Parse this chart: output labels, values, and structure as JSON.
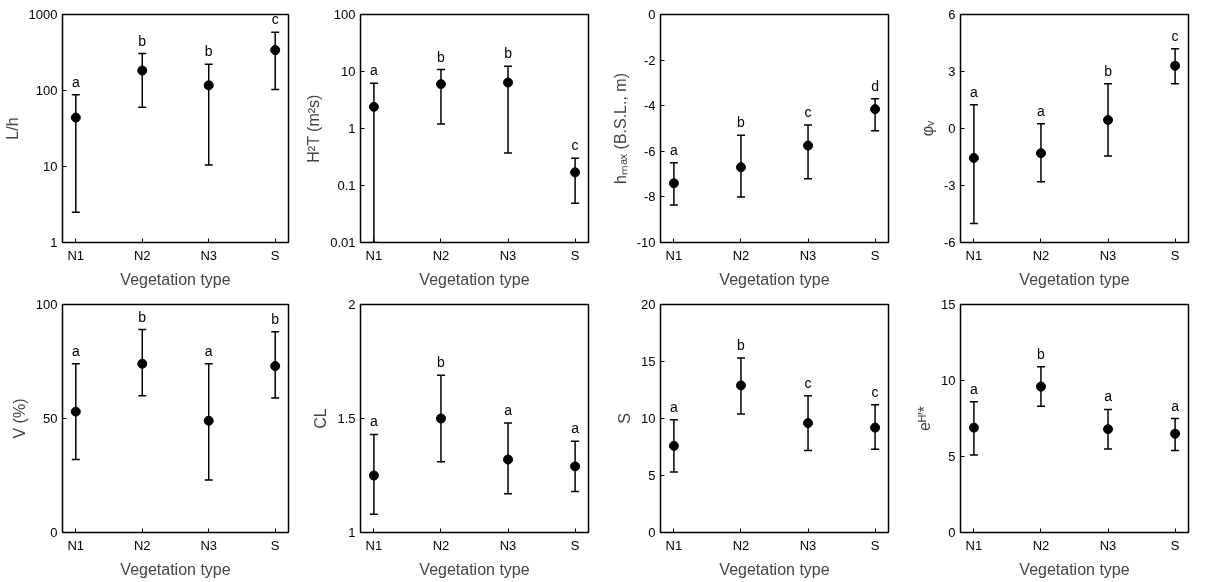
{
  "chart_data": [
    {
      "type": "scatter",
      "log": "y",
      "marker": "circle",
      "categories": [
        "N1",
        "N2",
        "N3",
        "S"
      ],
      "xlabel": "Vegetation type",
      "ylabel": "L/h",
      "ylim": [
        1,
        1000
      ],
      "yticks": [
        1,
        10,
        100,
        1000
      ],
      "series": [
        {
          "color": "#000000",
          "values": [
            44,
            183,
            117,
            340
          ],
          "errors": [
            [
              2.5,
              88
            ],
            [
              60,
              306
            ],
            [
              10.5,
              222
            ],
            [
              103,
              582
            ]
          ]
        }
      ],
      "annotations": [
        "a",
        "b",
        "b",
        "c"
      ]
    },
    {
      "type": "scatter",
      "log": "y",
      "marker": "circle",
      "categories": [
        "N1",
        "N2",
        "N3",
        "S"
      ],
      "xlabel": "Vegetation type",
      "ylabel": "H²T (m²s)",
      "ylim": [
        0.01,
        100
      ],
      "yticks": [
        0.01,
        0.1,
        1,
        10,
        100
      ],
      "series": [
        {
          "color": "#000000",
          "values": [
            2.4,
            6.0,
            6.4,
            0.17
          ],
          "errors": [
            [
              0.01,
              6.2
            ],
            [
              1.2,
              10.8
            ],
            [
              0.37,
              12.4
            ],
            [
              0.049,
              0.3
            ]
          ]
        }
      ],
      "annotations": [
        "a",
        "b",
        "b",
        "c"
      ]
    },
    {
      "type": "scatter",
      "marker": "circle",
      "categories": [
        "N1",
        "N2",
        "N3",
        "S"
      ],
      "xlabel": "Vegetation type",
      "ylabel": "hₘₐₓ (B.S.L., m)",
      "ylim": [
        -10,
        0
      ],
      "yticks": [
        -10,
        -8,
        -6,
        -4,
        -2,
        0
      ],
      "series": [
        {
          "color": "#000000",
          "values": [
            -7.4,
            -6.7,
            -5.75,
            -4.15
          ],
          "errors": [
            [
              -8.35,
              -6.5
            ],
            [
              -8.0,
              -5.3
            ],
            [
              -7.2,
              -4.85
            ],
            [
              -5.1,
              -3.7
            ]
          ]
        }
      ],
      "annotations": [
        "a",
        "b",
        "c",
        "d"
      ]
    },
    {
      "type": "scatter",
      "marker": "circle",
      "categories": [
        "N1",
        "N2",
        "N3",
        "S"
      ],
      "xlabel": "Vegetation type",
      "ylabel": "φᵥ",
      "ylim": [
        -6,
        6
      ],
      "yticks": [
        -6,
        -3,
        0,
        3,
        6
      ],
      "series": [
        {
          "color": "#000000",
          "values": [
            -1.55,
            -1.3,
            0.45,
            3.3
          ],
          "errors": [
            [
              -5.0,
              1.25
            ],
            [
              -2.8,
              0.25
            ],
            [
              -1.45,
              2.35
            ],
            [
              2.35,
              4.2
            ]
          ]
        }
      ],
      "annotations": [
        "a",
        "a",
        "b",
        "c"
      ]
    },
    {
      "type": "scatter",
      "marker": "circle",
      "categories": [
        "N1",
        "N2",
        "N3",
        "S"
      ],
      "xlabel": "Vegetation type",
      "ylabel": "V (%)",
      "ylim": [
        0,
        100
      ],
      "yticks": [
        0,
        50,
        100
      ],
      "series": [
        {
          "color": "#000000",
          "values": [
            53,
            74,
            49,
            73
          ],
          "errors": [
            [
              32,
              74
            ],
            [
              60,
              89
            ],
            [
              23,
              74
            ],
            [
              59,
              88
            ]
          ]
        }
      ],
      "annotations": [
        "a",
        "b",
        "a",
        "b"
      ]
    },
    {
      "type": "scatter",
      "marker": "circle",
      "categories": [
        "N1",
        "N2",
        "N3",
        "S"
      ],
      "xlabel": "Vegetation type",
      "ylabel": "CL",
      "ylim": [
        1,
        2
      ],
      "yticks": [
        1,
        1.5,
        2
      ],
      "series": [
        {
          "color": "#000000",
          "values": [
            1.25,
            1.5,
            1.32,
            1.29
          ],
          "errors": [
            [
              1.08,
              1.43
            ],
            [
              1.31,
              1.69
            ],
            [
              1.17,
              1.48
            ],
            [
              1.18,
              1.4
            ]
          ]
        }
      ],
      "annotations": [
        "a",
        "b",
        "a",
        "a"
      ]
    },
    {
      "type": "scatter",
      "marker": "circle",
      "categories": [
        "N1",
        "N2",
        "N3",
        "S"
      ],
      "xlabel": "Vegetation type",
      "ylabel": "S",
      "ylim": [
        0,
        20
      ],
      "yticks": [
        0,
        5,
        10,
        15,
        20
      ],
      "series": [
        {
          "color": "#000000",
          "values": [
            7.6,
            12.9,
            9.6,
            9.2
          ],
          "errors": [
            [
              5.3,
              9.9
            ],
            [
              10.4,
              15.3
            ],
            [
              7.2,
              12.0
            ],
            [
              7.3,
              11.2
            ]
          ]
        }
      ],
      "annotations": [
        "a",
        "b",
        "c",
        "c"
      ]
    },
    {
      "type": "scatter",
      "marker": "circle",
      "categories": [
        "N1",
        "N2",
        "N3",
        "S"
      ],
      "xlabel": "Vegetation type",
      "ylabel": "eᴴ′*",
      "ylim": [
        0,
        15
      ],
      "yticks": [
        0,
        5,
        10,
        15
      ],
      "series": [
        {
          "color": "#000000",
          "values": [
            6.9,
            9.6,
            6.8,
            6.5
          ],
          "errors": [
            [
              5.1,
              8.6
            ],
            [
              8.3,
              10.9
            ],
            [
              5.5,
              8.1
            ],
            [
              5.4,
              7.5
            ]
          ]
        }
      ],
      "annotations": [
        "a",
        "b",
        "a",
        "a"
      ]
    }
  ]
}
